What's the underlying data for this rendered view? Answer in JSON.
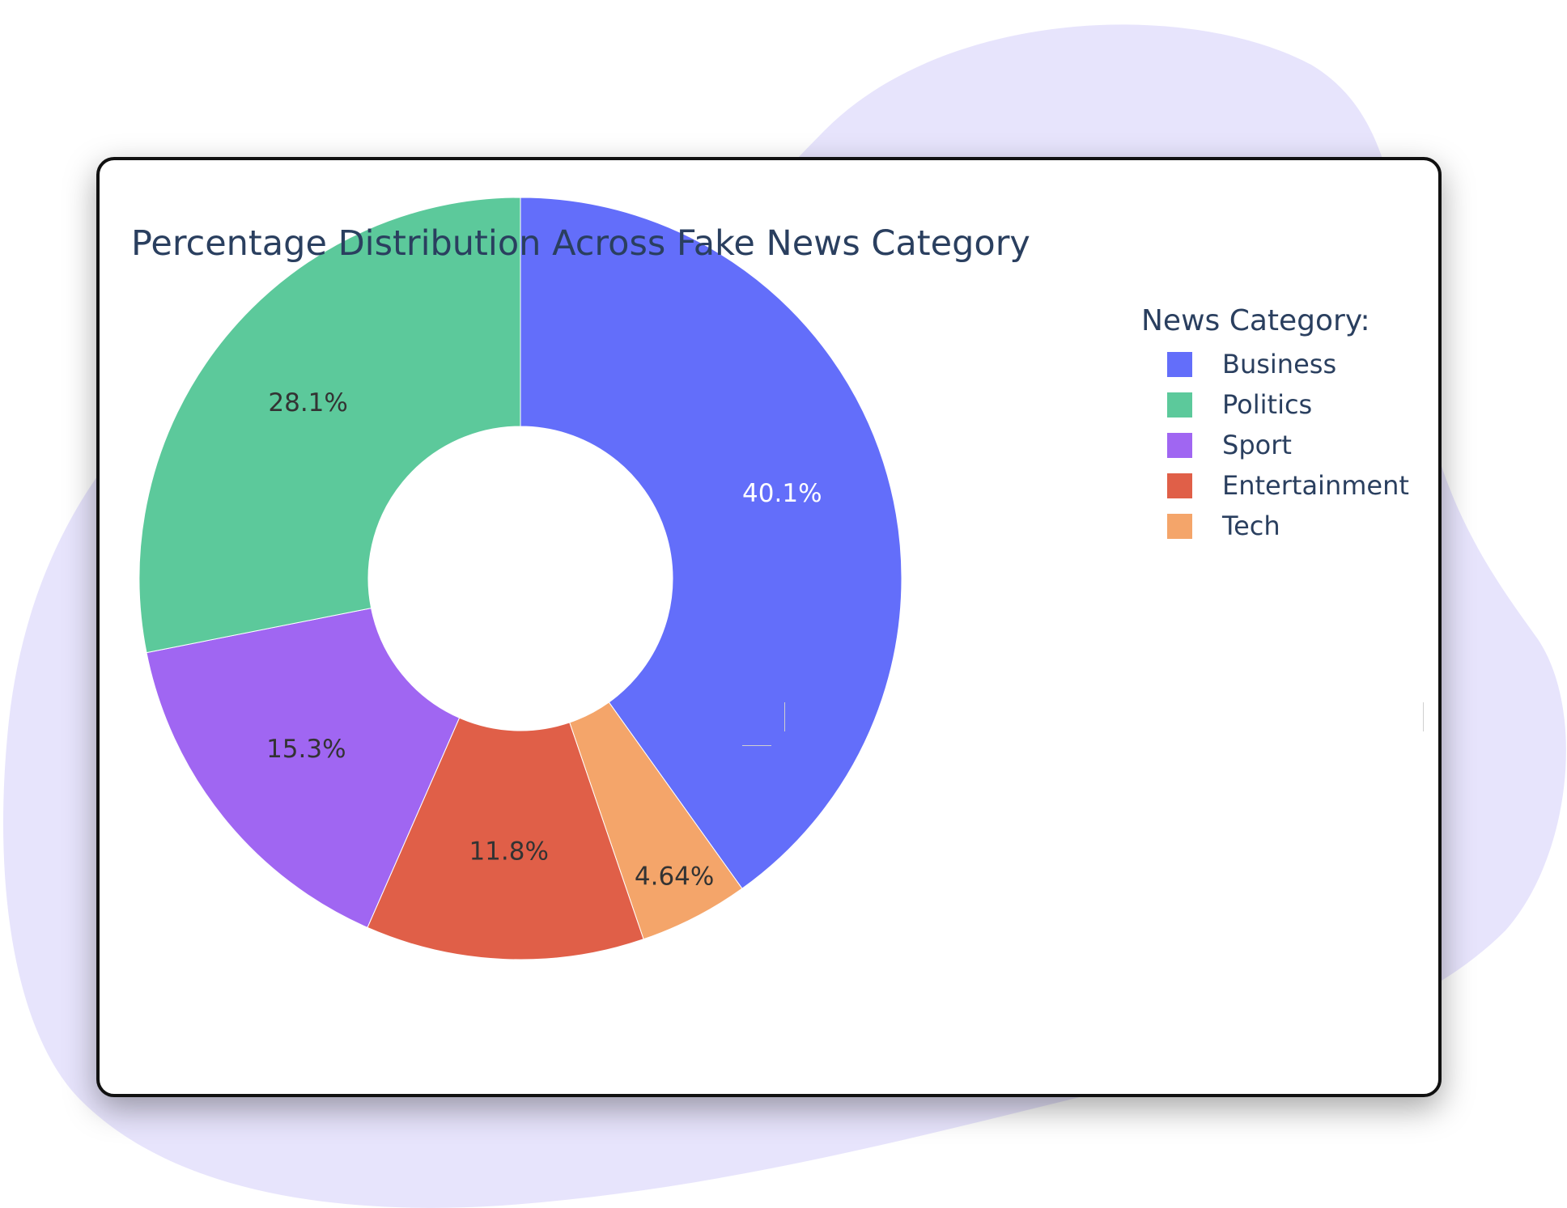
{
  "colors": {
    "background_blob": "#e7e4fc",
    "card_border": "#111111",
    "title_text": "#2a3f5f",
    "inside_label_dark": "#333333",
    "inside_label_light": "#ffffff"
  },
  "chart_data": {
    "type": "pie",
    "hole": true,
    "title": "Percentage Distribution Across Fake News Category",
    "legend": {
      "title": "News Category:",
      "placement": "top-right"
    },
    "slices": [
      {
        "label": "Business",
        "value": 40.1,
        "text": "40.1%",
        "color": "#636efa"
      },
      {
        "label": "Tech",
        "value": 4.64,
        "text": "4.64%",
        "color": "#f4a56a"
      },
      {
        "label": "Entertainment",
        "value": 11.8,
        "text": "11.8%",
        "color": "#e05f48"
      },
      {
        "label": "Sport",
        "value": 15.3,
        "text": "15.3%",
        "color": "#a066f2"
      },
      {
        "label": "Politics",
        "value": 28.1,
        "text": "28.1%",
        "color": "#5cc99b"
      }
    ],
    "legend_order": [
      "Business",
      "Politics",
      "Sport",
      "Entertainment",
      "Tech"
    ]
  }
}
